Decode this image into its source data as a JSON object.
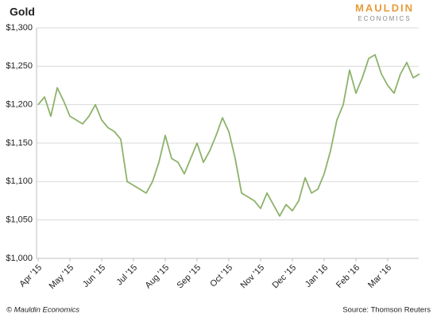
{
  "chart_data": {
    "type": "line",
    "title": "Gold",
    "logo": [
      "MAULDIN",
      "ECONOMICS"
    ],
    "credit": "© Mauldin Economics",
    "source": "Source: Thomson Reuters",
    "categories": [
      "Apr '15",
      null,
      null,
      null,
      null,
      "May '15",
      null,
      null,
      null,
      null,
      "Jun '15",
      null,
      null,
      null,
      null,
      "Jul '15",
      null,
      null,
      null,
      null,
      "Aug '15",
      null,
      null,
      null,
      null,
      "Sep '15",
      null,
      null,
      null,
      null,
      "Oct '15",
      null,
      null,
      null,
      null,
      "Nov '15",
      null,
      null,
      null,
      null,
      "Dec '15",
      null,
      null,
      null,
      null,
      "Jan '16",
      null,
      null,
      null,
      null,
      "Feb '16",
      null,
      null,
      null,
      null,
      "Mar '16",
      null,
      null,
      null,
      null,
      null
    ],
    "values": [
      1200,
      1210,
      1185,
      1222,
      1205,
      1185,
      1180,
      1175,
      1185,
      1200,
      1180,
      1170,
      1165,
      1155,
      1100,
      1095,
      1090,
      1085,
      1100,
      1125,
      1160,
      1130,
      1125,
      1110,
      1130,
      1150,
      1125,
      1140,
      1160,
      1183,
      1165,
      1130,
      1085,
      1080,
      1075,
      1065,
      1085,
      1070,
      1055,
      1070,
      1062,
      1075,
      1105,
      1085,
      1090,
      1110,
      1140,
      1180,
      1200,
      1245,
      1215,
      1235,
      1260,
      1265,
      1240,
      1225,
      1215,
      1240,
      1255,
      1235,
      1240
    ],
    "color": "#8db26a",
    "ylim": [
      1000,
      1300
    ],
    "yticks": [
      {
        "value": 1000,
        "label": "$1,000"
      },
      {
        "value": 1050,
        "label": "$1,050"
      },
      {
        "value": 1100,
        "label": "$1,100"
      },
      {
        "value": 1150,
        "label": "$1,150"
      },
      {
        "value": 1200,
        "label": "$1,200"
      },
      {
        "value": 1250,
        "label": "$1,250"
      },
      {
        "value": 1300,
        "label": "$1,300"
      }
    ],
    "grid": true
  }
}
